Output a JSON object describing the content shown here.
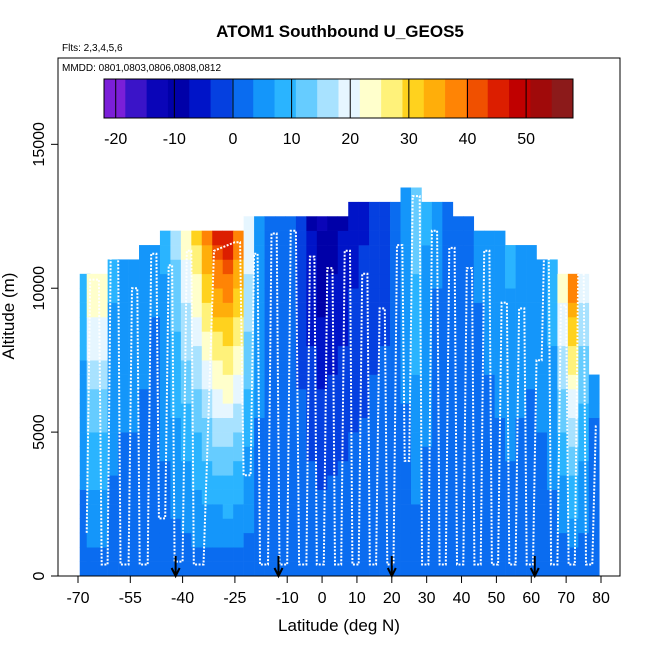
{
  "chart_data": {
    "type": "heatmap",
    "title": "ATOM1 Southbound U_GEOS5",
    "flights_note": "Flts: 2,3,4,5,6",
    "dates_note": "MMDD: 0801,0803,0806,0808,0812",
    "xlabel": "Latitude (deg N)",
    "ylabel": "Altitude (m)",
    "xlim": [
      -70,
      80
    ],
    "ylim": [
      0,
      18000
    ],
    "x_ticks": [
      -70,
      -55,
      -40,
      -25,
      -10,
      0,
      10,
      20,
      30,
      40,
      50,
      60,
      70,
      80
    ],
    "y_ticks": [
      0,
      5000,
      10000,
      15000
    ],
    "colorbar": {
      "range": [
        -22,
        58
      ],
      "ticks": [
        -20,
        -10,
        0,
        10,
        20,
        30,
        40,
        50
      ],
      "colors": [
        "#7b1fd8",
        "#3a14c8",
        "#0a05b8",
        "#0000a8",
        "#0014c8",
        "#0540e0",
        "#0a6cf0",
        "#1496fa",
        "#2ab4ff",
        "#66ccff",
        "#a8e2ff",
        "#e6f6ff",
        "#ffffcc",
        "#fff27a",
        "#ffd21e",
        "#ffae0a",
        "#ff8405",
        "#f05000",
        "#dc1e00",
        "#c00000",
        "#a00a0a",
        "#8c1a1a"
      ]
    },
    "profiles": [
      {
        "lat": -68,
        "top": 10500,
        "u": 10
      },
      {
        "lat": -66,
        "top": 10500,
        "u": 26
      },
      {
        "lat": -63,
        "top": 10500,
        "u": 26
      },
      {
        "lat": -60,
        "top": 11000,
        "u": 8
      },
      {
        "lat": -57,
        "top": 11000,
        "u": 6
      },
      {
        "lat": -54,
        "top": 11000,
        "u": 6
      },
      {
        "lat": -51,
        "top": 11500,
        "u": 5
      },
      {
        "lat": -48,
        "top": 11500,
        "u": 4
      },
      {
        "lat": -45,
        "top": 12000,
        "u": 8
      },
      {
        "lat": -42,
        "top": 12000,
        "u": 16
      },
      {
        "lat": -39,
        "top": 12000,
        "u": 24
      },
      {
        "lat": -36,
        "top": 12000,
        "u": 30
      },
      {
        "lat": -33,
        "top": 12000,
        "u": 38
      },
      {
        "lat": -30,
        "top": 12000,
        "u": 45
      },
      {
        "lat": -27,
        "top": 12000,
        "u": 48
      },
      {
        "lat": -24,
        "top": 12000,
        "u": 40
      },
      {
        "lat": -21,
        "top": 12500,
        "u": 22
      },
      {
        "lat": -18,
        "top": 12500,
        "u": 6
      },
      {
        "lat": -15,
        "top": 12500,
        "u": 2
      },
      {
        "lat": -12,
        "top": 12500,
        "u": 1
      },
      {
        "lat": -9,
        "top": 12500,
        "u": 0
      },
      {
        "lat": -6,
        "top": 12500,
        "u": -3
      },
      {
        "lat": -3,
        "top": 12500,
        "u": -8
      },
      {
        "lat": 0,
        "top": 12500,
        "u": -12
      },
      {
        "lat": 3,
        "top": 12500,
        "u": -10
      },
      {
        "lat": 6,
        "top": 12500,
        "u": -8
      },
      {
        "lat": 9,
        "top": 13000,
        "u": -6
      },
      {
        "lat": 12,
        "top": 13000,
        "u": -5
      },
      {
        "lat": 15,
        "top": 13000,
        "u": -3
      },
      {
        "lat": 18,
        "top": 13000,
        "u": -2
      },
      {
        "lat": 21,
        "top": 13000,
        "u": 0
      },
      {
        "lat": 24,
        "top": 13500,
        "u": 6
      },
      {
        "lat": 27,
        "top": 13500,
        "u": 14
      },
      {
        "lat": 30,
        "top": 13000,
        "u": 8
      },
      {
        "lat": 33,
        "top": 13000,
        "u": 4
      },
      {
        "lat": 36,
        "top": 13000,
        "u": 2
      },
      {
        "lat": 39,
        "top": 12500,
        "u": 2
      },
      {
        "lat": 42,
        "top": 12500,
        "u": 3
      },
      {
        "lat": 45,
        "top": 12000,
        "u": 4
      },
      {
        "lat": 48,
        "top": 12000,
        "u": 5
      },
      {
        "lat": 51,
        "top": 12000,
        "u": 6
      },
      {
        "lat": 54,
        "top": 11500,
        "u": 8
      },
      {
        "lat": 57,
        "top": 11500,
        "u": 6
      },
      {
        "lat": 60,
        "top": 11500,
        "u": 5
      },
      {
        "lat": 63,
        "top": 11000,
        "u": 6
      },
      {
        "lat": 66,
        "top": 11000,
        "u": 10
      },
      {
        "lat": 69,
        "top": 10500,
        "u": 24
      },
      {
        "lat": 72,
        "top": 10500,
        "u": 40
      },
      {
        "lat": 75,
        "top": 10500,
        "u": 20
      },
      {
        "lat": 78,
        "top": 7000,
        "u": 4
      }
    ],
    "flight_track": [
      [
        -67.5,
        1500
      ],
      [
        -66.5,
        10300
      ],
      [
        -64,
        10300
      ],
      [
        -63.2,
        400
      ],
      [
        -61.5,
        400
      ],
      [
        -60.6,
        11500
      ],
      [
        -58.5,
        11400
      ],
      [
        -57.8,
        400
      ],
      [
        -55.5,
        400
      ],
      [
        -54.5,
        10000
      ],
      [
        -53,
        10000
      ],
      [
        -52.3,
        400
      ],
      [
        -50,
        400
      ],
      [
        -49,
        11200
      ],
      [
        -47.5,
        11200
      ],
      [
        -46.8,
        2000
      ],
      [
        -45,
        2000
      ],
      [
        -44,
        10800
      ],
      [
        -43,
        10800
      ],
      [
        -42.3,
        500
      ],
      [
        -40,
        500
      ],
      [
        -38.8,
        11300
      ],
      [
        -37.5,
        11300
      ],
      [
        -36.8,
        400
      ],
      [
        -34,
        400
      ],
      [
        -31,
        11300
      ],
      [
        -25,
        11600
      ],
      [
        -23.5,
        11600
      ],
      [
        -22.5,
        3500
      ],
      [
        -20.5,
        3500
      ],
      [
        -19.5,
        11200
      ],
      [
        -18.5,
        11200
      ],
      [
        -17.8,
        400
      ],
      [
        -15.5,
        400
      ],
      [
        -14.5,
        11900
      ],
      [
        -13,
        11900
      ],
      [
        -12.2,
        400
      ],
      [
        -10,
        400
      ],
      [
        -9,
        12000
      ],
      [
        -7.5,
        12000
      ],
      [
        -6.6,
        400
      ],
      [
        -4.5,
        400
      ],
      [
        -3.5,
        11100
      ],
      [
        -2.2,
        11100
      ],
      [
        -1.5,
        400
      ],
      [
        0.5,
        400
      ],
      [
        1.5,
        10700
      ],
      [
        3,
        10700
      ],
      [
        3.7,
        400
      ],
      [
        5.5,
        400
      ],
      [
        6.5,
        11300
      ],
      [
        8,
        11300
      ],
      [
        8.7,
        400
      ],
      [
        10.5,
        400
      ],
      [
        11.5,
        10500
      ],
      [
        13,
        10500
      ],
      [
        13.7,
        400
      ],
      [
        15.5,
        400
      ],
      [
        16.5,
        9300
      ],
      [
        18,
        9300
      ],
      [
        18.7,
        400
      ],
      [
        20.5,
        400
      ],
      [
        21.5,
        11500
      ],
      [
        23,
        11500
      ],
      [
        23.7,
        4000
      ],
      [
        25,
        4000
      ],
      [
        26,
        13200
      ],
      [
        28,
        13200
      ],
      [
        28.7,
        400
      ],
      [
        30.5,
        400
      ],
      [
        31.5,
        12000
      ],
      [
        33,
        12000
      ],
      [
        33.7,
        400
      ],
      [
        35.5,
        400
      ],
      [
        36.5,
        11400
      ],
      [
        38,
        11400
      ],
      [
        38.7,
        400
      ],
      [
        40.5,
        400
      ],
      [
        41.5,
        10700
      ],
      [
        43,
        10700
      ],
      [
        43.7,
        400
      ],
      [
        45.5,
        400
      ],
      [
        46.5,
        11300
      ],
      [
        48,
        11300
      ],
      [
        48.7,
        400
      ],
      [
        50.5,
        400
      ],
      [
        51.5,
        9500
      ],
      [
        53,
        9500
      ],
      [
        53.7,
        400
      ],
      [
        55.5,
        400
      ],
      [
        56.5,
        9300
      ],
      [
        58,
        9300
      ],
      [
        58.7,
        400
      ],
      [
        60.5,
        400
      ],
      [
        61.5,
        7500
      ],
      [
        63,
        7500
      ],
      [
        63.7,
        11500
      ],
      [
        65,
        11500
      ],
      [
        65.7,
        400
      ],
      [
        67.5,
        400
      ],
      [
        68.5,
        9400
      ],
      [
        70,
        9400
      ],
      [
        70.7,
        400
      ],
      [
        72.5,
        400
      ],
      [
        73.5,
        10800
      ],
      [
        75,
        10800
      ],
      [
        75.7,
        400
      ],
      [
        77.5,
        400
      ],
      [
        78.5,
        5200
      ],
      [
        79,
        5200
      ]
    ],
    "arrows_lat": [
      -42,
      -12.5,
      20,
      61
    ]
  }
}
